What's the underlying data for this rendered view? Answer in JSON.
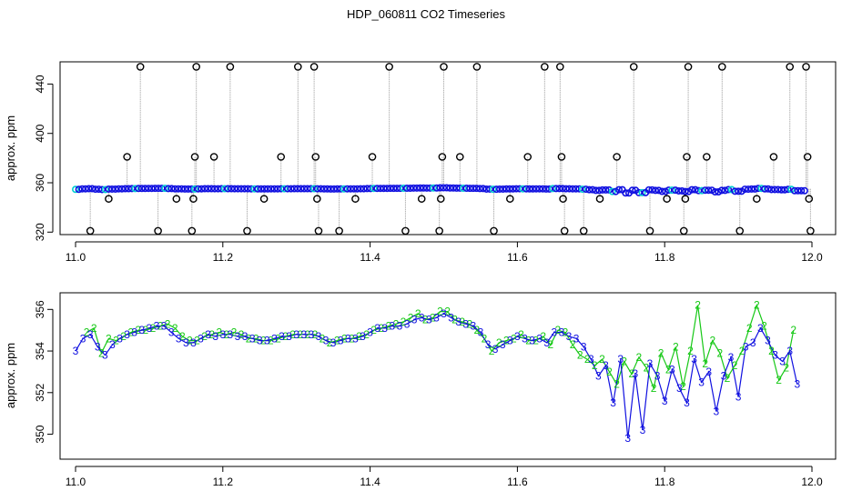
{
  "title": "HDP_060811  CO2 Timeseries",
  "colors": {
    "raw_points": "#000000",
    "raw_lines": "#9a9a9a",
    "blue_series": "#1010e0",
    "green_series": "#16c816",
    "cyan_series": "#00d0d0"
  },
  "chart_data": [
    {
      "type": "scatter",
      "title": "",
      "xlabel": "",
      "ylabel": "approx. ppm",
      "xlim": [
        11.0,
        12.0
      ],
      "ylim": [
        318,
        458
      ],
      "xticks": [
        11.0,
        11.2,
        11.4,
        11.6,
        11.8,
        12.0
      ],
      "xtick_labels": [
        "11.0",
        "11.2",
        "11.4",
        "11.6",
        "11.8",
        "12.0"
      ],
      "yticks": [
        320,
        360,
        400,
        440
      ],
      "ytick_labels": [
        "320",
        "360",
        "400",
        "440"
      ],
      "grid": false,
      "baseline_ppm": 355,
      "x_range_series": [
        11.0,
        11.99
      ],
      "spikes": [
        {
          "x": 11.02,
          "y": 321
        },
        {
          "x": 11.045,
          "y": 347
        },
        {
          "x": 11.07,
          "y": 381
        },
        {
          "x": 11.088,
          "y": 454
        },
        {
          "x": 11.112,
          "y": 321
        },
        {
          "x": 11.137,
          "y": 347
        },
        {
          "x": 11.158,
          "y": 321
        },
        {
          "x": 11.16,
          "y": 347
        },
        {
          "x": 11.162,
          "y": 381
        },
        {
          "x": 11.164,
          "y": 454
        },
        {
          "x": 11.188,
          "y": 381
        },
        {
          "x": 11.21,
          "y": 454
        },
        {
          "x": 11.233,
          "y": 321
        },
        {
          "x": 11.256,
          "y": 347
        },
        {
          "x": 11.279,
          "y": 381
        },
        {
          "x": 11.302,
          "y": 454
        },
        {
          "x": 11.324,
          "y": 454
        },
        {
          "x": 11.326,
          "y": 381
        },
        {
          "x": 11.328,
          "y": 347
        },
        {
          "x": 11.33,
          "y": 321
        },
        {
          "x": 11.358,
          "y": 321
        },
        {
          "x": 11.38,
          "y": 347
        },
        {
          "x": 11.403,
          "y": 381
        },
        {
          "x": 11.426,
          "y": 454
        },
        {
          "x": 11.448,
          "y": 321
        },
        {
          "x": 11.47,
          "y": 347
        },
        {
          "x": 11.494,
          "y": 321
        },
        {
          "x": 11.496,
          "y": 347
        },
        {
          "x": 11.498,
          "y": 381
        },
        {
          "x": 11.5,
          "y": 454
        },
        {
          "x": 11.522,
          "y": 381
        },
        {
          "x": 11.545,
          "y": 454
        },
        {
          "x": 11.568,
          "y": 321
        },
        {
          "x": 11.59,
          "y": 347
        },
        {
          "x": 11.614,
          "y": 381
        },
        {
          "x": 11.637,
          "y": 454
        },
        {
          "x": 11.658,
          "y": 454
        },
        {
          "x": 11.66,
          "y": 381
        },
        {
          "x": 11.662,
          "y": 347
        },
        {
          "x": 11.664,
          "y": 321
        },
        {
          "x": 11.69,
          "y": 321
        },
        {
          "x": 11.712,
          "y": 347
        },
        {
          "x": 11.735,
          "y": 381
        },
        {
          "x": 11.758,
          "y": 454
        },
        {
          "x": 11.78,
          "y": 321
        },
        {
          "x": 11.803,
          "y": 347
        },
        {
          "x": 11.826,
          "y": 321
        },
        {
          "x": 11.828,
          "y": 347
        },
        {
          "x": 11.83,
          "y": 381
        },
        {
          "x": 11.832,
          "y": 454
        },
        {
          "x": 11.857,
          "y": 381
        },
        {
          "x": 11.878,
          "y": 454
        },
        {
          "x": 11.902,
          "y": 321
        },
        {
          "x": 11.925,
          "y": 347
        },
        {
          "x": 11.948,
          "y": 381
        },
        {
          "x": 11.97,
          "y": 454
        },
        {
          "x": 11.992,
          "y": 454
        },
        {
          "x": 11.994,
          "y": 381
        },
        {
          "x": 11.996,
          "y": 347
        },
        {
          "x": 11.998,
          "y": 321
        }
      ]
    },
    {
      "type": "line",
      "title": "",
      "xlabel": "",
      "ylabel": "approx. ppm",
      "xlim": [
        11.0,
        12.0
      ],
      "ylim": [
        348.8,
        356.8
      ],
      "xticks": [
        11.0,
        11.2,
        11.4,
        11.6,
        11.8,
        12.0
      ],
      "xtick_labels": [
        "11.0",
        "11.2",
        "11.4",
        "11.6",
        "11.8",
        "12.0"
      ],
      "yticks": [
        350,
        352,
        354,
        356
      ],
      "ytick_labels": [
        "350",
        "352",
        "354",
        "356"
      ],
      "grid": false,
      "series": [
        {
          "marker": "3",
          "color_key": "blue_series",
          "x": [
            11.0,
            11.01,
            11.02,
            11.03,
            11.04,
            11.05,
            11.06,
            11.07,
            11.08,
            11.09,
            11.1,
            11.11,
            11.12,
            11.13,
            11.14,
            11.15,
            11.16,
            11.17,
            11.18,
            11.19,
            11.2,
            11.21,
            11.22,
            11.23,
            11.24,
            11.25,
            11.26,
            11.27,
            11.28,
            11.29,
            11.3,
            11.31,
            11.32,
            11.33,
            11.34,
            11.35,
            11.36,
            11.37,
            11.38,
            11.39,
            11.4,
            11.41,
            11.42,
            11.43,
            11.44,
            11.45,
            11.46,
            11.47,
            11.48,
            11.49,
            11.5,
            11.51,
            11.52,
            11.53,
            11.54,
            11.55,
            11.56,
            11.57,
            11.58,
            11.59,
            11.6,
            11.61,
            11.62,
            11.63,
            11.64,
            11.65,
            11.66,
            11.67,
            11.68,
            11.69,
            11.7,
            11.71,
            11.72,
            11.73,
            11.74,
            11.75,
            11.76,
            11.77,
            11.78,
            11.79,
            11.8,
            11.81,
            11.82,
            11.83,
            11.84,
            11.85,
            11.86,
            11.87,
            11.88,
            11.89,
            11.9,
            11.91,
            11.92,
            11.93,
            11.94,
            11.95,
            11.96,
            11.97,
            11.98
          ],
          "y": [
            354.0,
            354.6,
            354.8,
            354.2,
            353.8,
            354.3,
            354.6,
            354.8,
            354.9,
            355.0,
            355.1,
            355.2,
            355.2,
            354.9,
            354.6,
            354.4,
            354.4,
            354.6,
            354.8,
            354.7,
            354.8,
            354.8,
            354.7,
            354.7,
            354.6,
            354.5,
            354.5,
            354.6,
            354.7,
            354.7,
            354.8,
            354.8,
            354.8,
            354.7,
            354.5,
            354.4,
            354.5,
            354.6,
            354.6,
            354.7,
            354.9,
            355.1,
            355.1,
            355.2,
            355.2,
            355.3,
            355.5,
            355.6,
            355.5,
            355.6,
            355.8,
            355.6,
            355.4,
            355.3,
            355.2,
            354.9,
            354.3,
            354.1,
            354.3,
            354.5,
            354.7,
            354.6,
            354.5,
            354.6,
            354.4,
            354.9,
            354.9,
            354.7,
            354.6,
            354.2,
            353.6,
            352.8,
            353.3,
            351.5,
            353.6,
            349.8,
            352.9,
            350.2,
            353.4,
            352.8,
            351.6,
            353.1,
            352.2,
            351.5,
            353.6,
            352.5,
            353.0,
            351.1,
            352.8,
            353.7,
            351.8,
            354.2,
            354.4,
            355.1,
            354.5,
            353.8,
            353.5,
            354.0,
            352.4
          ]
        },
        {
          "marker": "2",
          "color_key": "green_series",
          "x": [
            11.015,
            11.025,
            11.035,
            11.045,
            11.055,
            11.065,
            11.075,
            11.085,
            11.095,
            11.105,
            11.115,
            11.125,
            11.135,
            11.145,
            11.155,
            11.165,
            11.175,
            11.185,
            11.195,
            11.205,
            11.215,
            11.225,
            11.235,
            11.245,
            11.255,
            11.265,
            11.275,
            11.285,
            11.295,
            11.305,
            11.315,
            11.325,
            11.335,
            11.345,
            11.355,
            11.365,
            11.375,
            11.385,
            11.395,
            11.405,
            11.415,
            11.425,
            11.435,
            11.445,
            11.455,
            11.465,
            11.475,
            11.485,
            11.495,
            11.505,
            11.515,
            11.525,
            11.535,
            11.545,
            11.555,
            11.565,
            11.575,
            11.585,
            11.595,
            11.605,
            11.615,
            11.625,
            11.635,
            11.645,
            11.655,
            11.665,
            11.675,
            11.685,
            11.695,
            11.705,
            11.715,
            11.725,
            11.735,
            11.745,
            11.755,
            11.765,
            11.775,
            11.785,
            11.795,
            11.805,
            11.815,
            11.825,
            11.835,
            11.845,
            11.855,
            11.865,
            11.875,
            11.885,
            11.895,
            11.905,
            11.915,
            11.925,
            11.935,
            11.945,
            11.955,
            11.965,
            11.975
          ],
          "y": [
            354.9,
            355.1,
            353.9,
            354.6,
            354.5,
            354.7,
            354.9,
            355.0,
            355.0,
            355.1,
            355.2,
            355.3,
            355.1,
            354.7,
            354.5,
            354.5,
            354.7,
            354.8,
            354.9,
            354.8,
            354.9,
            354.8,
            354.6,
            354.6,
            354.5,
            354.5,
            354.6,
            354.7,
            354.8,
            354.8,
            354.8,
            354.8,
            354.6,
            354.4,
            354.5,
            354.6,
            354.6,
            354.7,
            354.8,
            355.0,
            355.1,
            355.2,
            355.3,
            355.4,
            355.6,
            355.8,
            355.5,
            355.6,
            355.9,
            355.9,
            355.5,
            355.4,
            355.3,
            355.0,
            354.6,
            354.0,
            354.4,
            354.5,
            354.6,
            354.8,
            354.5,
            354.5,
            354.7,
            354.3,
            355.0,
            354.9,
            354.3,
            353.8,
            353.6,
            353.3,
            353.6,
            353.0,
            352.4,
            353.5,
            352.9,
            353.7,
            353.2,
            352.2,
            353.9,
            353.1,
            354.2,
            352.3,
            354.0,
            356.2,
            353.4,
            354.5,
            353.9,
            352.7,
            353.3,
            354.0,
            355.1,
            356.2,
            355.2,
            354.0,
            352.6,
            353.2,
            355.0
          ]
        }
      ]
    }
  ]
}
